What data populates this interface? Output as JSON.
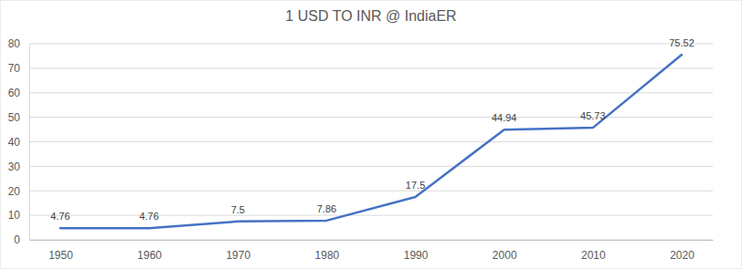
{
  "chart_data": {
    "type": "line",
    "title": "1 USD TO INR @ IndiaER",
    "categories": [
      "1950",
      "1960",
      "1970",
      "1980",
      "1990",
      "2000",
      "2010",
      "2020"
    ],
    "values": [
      4.76,
      4.76,
      7.5,
      7.86,
      17.5,
      44.94,
      45.73,
      75.52
    ],
    "color": "#4472c4",
    "ylim": [
      0,
      80
    ],
    "yticks": [
      0,
      10,
      20,
      30,
      40,
      50,
      60,
      70,
      80
    ],
    "grid": true,
    "data_labels": true
  }
}
